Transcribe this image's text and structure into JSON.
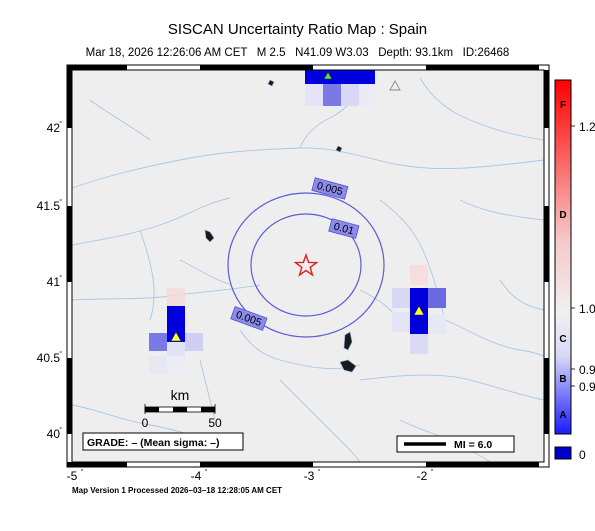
{
  "header": {
    "title": "SISCAN Uncertainty Ratio Map : Spain",
    "subtitle_date": "Mar 18, 2026 12:26:06 AM CET",
    "subtitle_mag": "M 2.5",
    "subtitle_loc": "N41.09 W3.03",
    "subtitle_depth": "Depth: 93.1km",
    "subtitle_id": "ID:26468"
  },
  "map": {
    "lat_ticks": [
      "42",
      "41.5",
      "41",
      "40.5",
      "40"
    ],
    "lon_ticks": [
      "-5",
      "-4",
      "-3",
      "-2"
    ],
    "epicenter": {
      "lat": 41.09,
      "lon": -3.03
    },
    "contours": [
      {
        "label": "0.005"
      },
      {
        "label": "0.01"
      },
      {
        "label": "0.005"
      }
    ],
    "scale_bar": {
      "unit": "km",
      "start": "0",
      "end": "50"
    },
    "grade_text": "GRADE: – (Mean sigma: –)",
    "mi_text": "MI = 6.0"
  },
  "colorbar": {
    "grades": [
      "F",
      "D",
      "C",
      "B",
      "A"
    ],
    "values": [
      "1.2",
      "1.0",
      "0.9",
      "0.9",
      "0"
    ],
    "colors": {
      "top": "#ff0000",
      "mid": "#f0f0f0",
      "bottom": "#0000ff",
      "bottom_box": "#0000c8"
    }
  },
  "footer": {
    "text": "Map Version 1 Processed 2026–03–18 12:28:05 AM CET"
  }
}
